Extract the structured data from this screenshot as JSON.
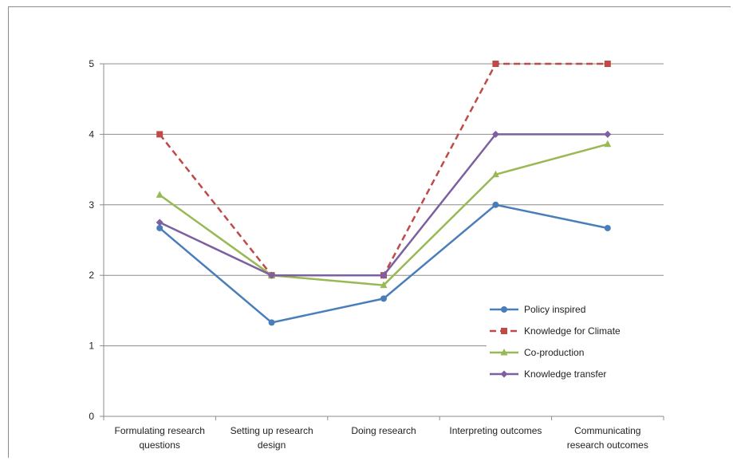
{
  "chart_data": {
    "type": "line",
    "categories": [
      [
        "Formulating research",
        "questions"
      ],
      [
        "Setting up research",
        "design"
      ],
      [
        "Doing research"
      ],
      [
        "Interpreting outcomes"
      ],
      [
        "Communicating",
        "research outcomes"
      ]
    ],
    "ylim": [
      0,
      5
    ],
    "yticks": [
      "0",
      "1",
      "2",
      "3",
      "4",
      "5"
    ],
    "grid": true,
    "legend_position": "bottom-right",
    "series": [
      {
        "name": "Policy inspired",
        "values": [
          2.67,
          1.33,
          1.67,
          3.0,
          2.67
        ],
        "color": "#4a7ebb",
        "marker": "circle",
        "dash": "solid"
      },
      {
        "name": "Knowledge for Climate",
        "values": [
          4.0,
          2.0,
          2.0,
          5.0,
          5.0
        ],
        "color": "#be4b48",
        "marker": "square",
        "dash": "dashed"
      },
      {
        "name": "Co-production",
        "values": [
          3.14,
          2.0,
          1.86,
          3.43,
          3.86
        ],
        "color": "#98b954",
        "marker": "triangle",
        "dash": "solid"
      },
      {
        "name": "Knowledge transfer",
        "values": [
          2.75,
          2.0,
          2.0,
          4.0,
          4.0
        ],
        "color": "#7d60a0",
        "marker": "diamond",
        "dash": "solid"
      }
    ]
  }
}
